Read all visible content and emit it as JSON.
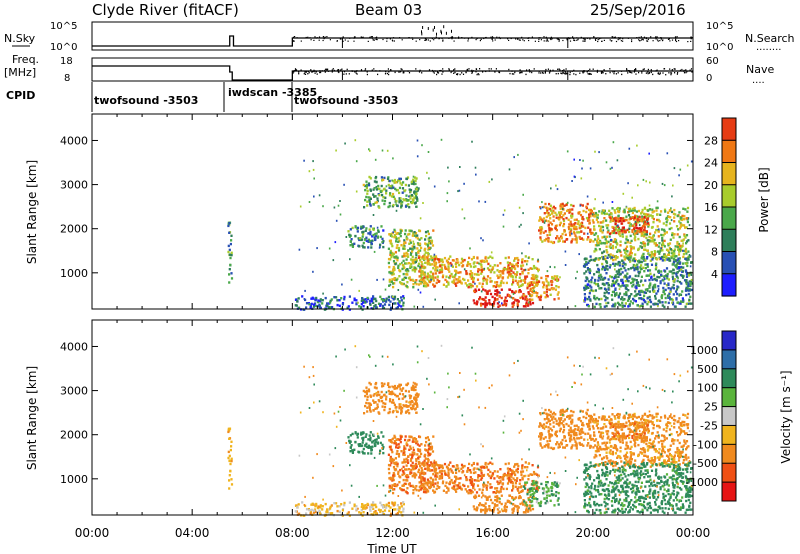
{
  "header": {
    "station": "Clyde River (fitACF)",
    "beam": "Beam 03",
    "date": "25/Sep/2016"
  },
  "nsky_panel": {
    "label_left": "N.Sky",
    "label_right": "N.Search",
    "right_marker": "........",
    "ticks_left": [
      "10^5",
      "10^0"
    ],
    "ticks_right": [
      "10^5",
      "10^0"
    ]
  },
  "freq_panel": {
    "label_left_1": "Freq.",
    "label_left_2": "[MHz]",
    "label_right": "Nave",
    "right_marker": "....",
    "ticks_left": [
      "18",
      "8"
    ],
    "ticks_right": [
      "60",
      "0"
    ]
  },
  "cpid": {
    "label": "CPID",
    "segments": [
      {
        "name": "twofsound -3503",
        "start_h": 0.0
      },
      {
        "name": "iwdscan -3385",
        "start_h": 5.5
      },
      {
        "name": "twofsound -3503",
        "start_h": 8.0
      }
    ]
  },
  "time_axis": {
    "xlabel": "Time UT",
    "ticks": [
      "00:00",
      "04:00",
      "08:00",
      "12:00",
      "16:00",
      "20:00",
      "00:00"
    ]
  },
  "power_panel": {
    "ylabel": "Slant Range [km]",
    "yticks": [
      "1000",
      "2000",
      "3000",
      "4000"
    ],
    "colorbar_label": "Power [dB]",
    "colorbar_ticks": [
      "4",
      "8",
      "12",
      "16",
      "20",
      "24",
      "28"
    ],
    "colors": [
      "#1e1eff",
      "#2850b4",
      "#2e7e5a",
      "#4aa84a",
      "#a8cc2c",
      "#e6b41e",
      "#f07814",
      "#e63c14",
      "#dc1414"
    ]
  },
  "velocity_panel": {
    "ylabel": "Slant Range [km]",
    "yticks": [
      "1000",
      "2000",
      "3000",
      "4000"
    ],
    "colorbar_label": "Velocity  [m s⁻¹]",
    "colorbar_ticks": [
      "1000",
      "500",
      "100",
      "25",
      "-25",
      "-100",
      "-500",
      "-1000"
    ],
    "colors": [
      "#2828c8",
      "#2e6ea8",
      "#2e8a5a",
      "#5ab43c",
      "#c8c8c8",
      "#f0b41e",
      "#f08a1e",
      "#f05014",
      "#e61414"
    ]
  },
  "chart_data": {
    "type": "heatmap",
    "x_unit": "hours UT",
    "x_range": [
      0,
      24
    ],
    "y_range_km": [
      180,
      4600
    ],
    "regions": [
      {
        "t0": 5.4,
        "t1": 5.55,
        "r0": 800,
        "r1": 2300,
        "power": 10,
        "velocity": -80
      },
      {
        "t0": 8.0,
        "t1": 12.5,
        "r0": 190,
        "r1": 500,
        "power": 6,
        "velocity": -60
      },
      {
        "t0": 10.2,
        "t1": 11.6,
        "r0": 1600,
        "r1": 2100,
        "power": 9,
        "velocity": 200
      },
      {
        "t0": 10.8,
        "t1": 13.0,
        "r0": 2500,
        "r1": 3200,
        "power": 12,
        "velocity": -300
      },
      {
        "t0": 11.8,
        "t1": 13.6,
        "r0": 700,
        "r1": 2000,
        "power": 16,
        "velocity": -400
      },
      {
        "t0": 13.0,
        "t1": 17.8,
        "r0": 700,
        "r1": 1400,
        "power": 20,
        "velocity": -400
      },
      {
        "t0": 15.2,
        "t1": 17.6,
        "r0": 250,
        "r1": 650,
        "power": 28,
        "velocity": -300
      },
      {
        "t0": 17.2,
        "t1": 18.6,
        "r0": 400,
        "r1": 1000,
        "power": 22,
        "velocity": 80
      },
      {
        "t0": 17.8,
        "t1": 20.0,
        "r0": 1700,
        "r1": 2600,
        "power": 22,
        "velocity": -300
      },
      {
        "t0": 20.0,
        "t1": 23.8,
        "r0": 1300,
        "r1": 2500,
        "power": 16,
        "velocity": -150
      },
      {
        "t0": 19.6,
        "t1": 23.9,
        "r0": 250,
        "r1": 1400,
        "power": 9,
        "velocity": 150
      },
      {
        "t0": 20.6,
        "t1": 22.2,
        "r0": 1900,
        "r1": 2300,
        "power": 26,
        "velocity": -400
      }
    ]
  }
}
